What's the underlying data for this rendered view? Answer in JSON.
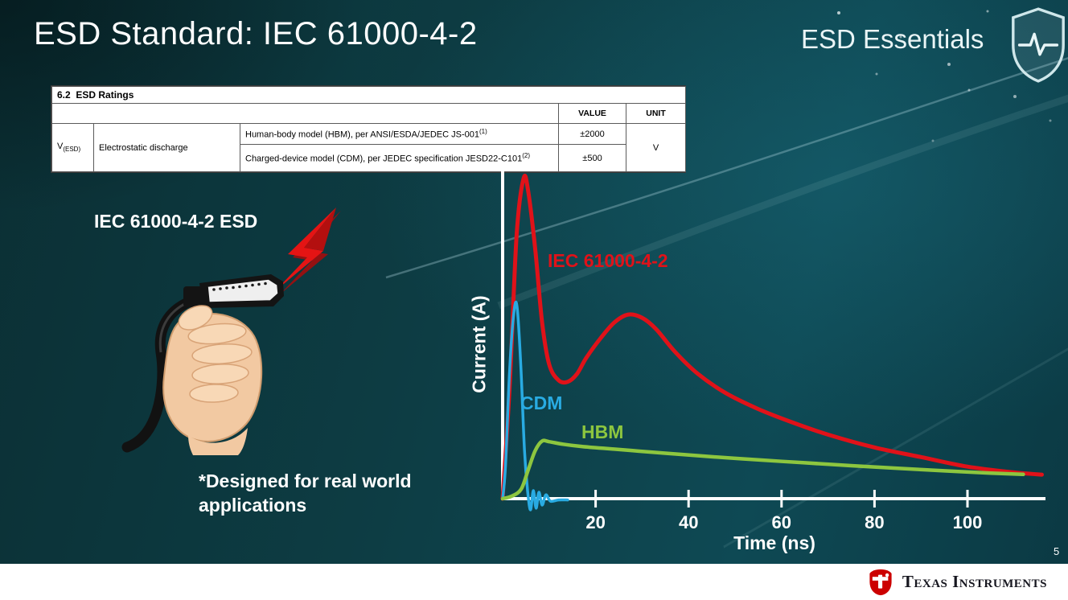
{
  "slide": {
    "title": "ESD Standard: IEC 61000-4-2",
    "brand": "ESD Essentials",
    "page_number": "5",
    "footer_logo": "Texas Instruments"
  },
  "ratings_table": {
    "section": "6.2",
    "section_title": "ESD Ratings",
    "headers": {
      "value": "VALUE",
      "unit": "UNIT"
    },
    "param_symbol": "V",
    "param_symbol_sub": "(ESD)",
    "param_name": "Electrostatic discharge",
    "rows": [
      {
        "description": "Human-body model (HBM), per ANSI/ESDA/JEDEC JS-001",
        "footnote": "(1)",
        "value": "±2000"
      },
      {
        "description": "Charged-device model (CDM), per JEDEC specification JESD22-C101",
        "footnote": "(2)",
        "value": "±500"
      }
    ],
    "unit": "V"
  },
  "left": {
    "caption": "IEC 61000-4-2 ESD",
    "note_line1": "*Designed for real world",
    "note_line2": "applications"
  },
  "chart_data": {
    "type": "line",
    "title": "",
    "xlabel": "Time (ns)",
    "ylabel": "Current (A)",
    "x_ticks": [
      20,
      40,
      60,
      80,
      100
    ],
    "xlim": [
      0,
      116
    ],
    "y_scale": "relative amplitude; y axis shows no numeric ticks (1.0 = IEC 61000-4-2 peak)",
    "grid": false,
    "legend_position": "labels-on-curves",
    "series": [
      {
        "name": "IEC 61000-4-2",
        "color": "#e01219",
        "x": [
          0,
          1.5,
          3,
          4.5,
          5.5,
          7,
          8.5,
          10,
          12,
          14,
          16,
          18,
          21,
          24,
          27,
          30,
          33,
          37,
          42,
          48,
          55,
          62,
          70,
          80,
          90,
          100,
          110,
          116
        ],
        "y": [
          0,
          0.35,
          0.82,
          1.0,
          0.96,
          0.78,
          0.55,
          0.42,
          0.37,
          0.365,
          0.39,
          0.44,
          0.5,
          0.55,
          0.575,
          0.565,
          0.53,
          0.46,
          0.39,
          0.33,
          0.28,
          0.24,
          0.2,
          0.16,
          0.13,
          0.1,
          0.082,
          0.075
        ]
      },
      {
        "name": "CDM",
        "color": "#29abe2",
        "x": [
          0,
          0.6,
          1.5,
          2.4,
          3.1,
          3.9,
          4.7,
          5.4,
          6.0,
          6.6,
          7.2,
          7.8,
          8.5,
          9.3,
          10.3,
          12,
          14
        ],
        "y": [
          0,
          0.1,
          0.4,
          0.58,
          0.6,
          0.42,
          0.15,
          0.02,
          -0.035,
          0.025,
          -0.03,
          0.02,
          -0.02,
          0.012,
          -0.008,
          -0.004,
          -0.004
        ]
      },
      {
        "name": "HBM",
        "color": "#8dc63f",
        "x": [
          0,
          2,
          4,
          5.5,
          7,
          8.5,
          10,
          13,
          17,
          22,
          28,
          35,
          45,
          55,
          65,
          75,
          85,
          95,
          105,
          112
        ],
        "y": [
          0,
          0.008,
          0.03,
          0.09,
          0.15,
          0.18,
          0.178,
          0.17,
          0.163,
          0.157,
          0.15,
          0.142,
          0.131,
          0.121,
          0.112,
          0.103,
          0.095,
          0.087,
          0.08,
          0.076
        ]
      }
    ]
  }
}
